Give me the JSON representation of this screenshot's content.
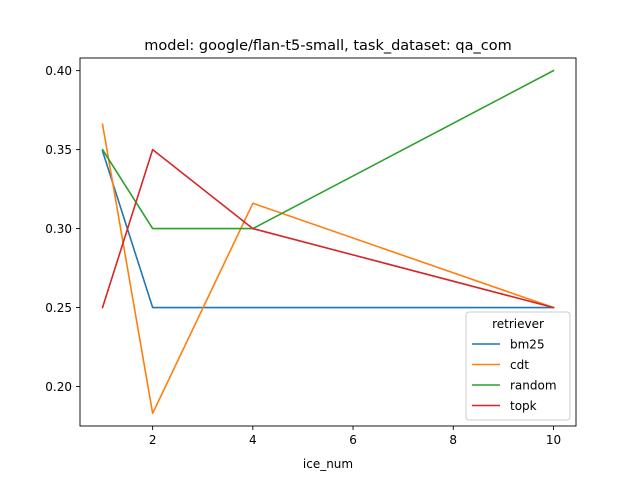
{
  "chart_data": {
    "type": "line",
    "title": "model: google/flan-t5-small, task_dataset: qa_com",
    "xlabel": "ice_num",
    "ylabel": "",
    "xlim": [
      0.55,
      10.45
    ],
    "ylim": [
      0.175,
      0.408
    ],
    "xticks": [
      2,
      4,
      6,
      8,
      10
    ],
    "yticks": [
      0.2,
      0.25,
      0.3,
      0.35,
      0.4
    ],
    "xtick_labels": [
      "2",
      "4",
      "6",
      "8",
      "10"
    ],
    "ytick_labels": [
      "0.20",
      "0.25",
      "0.30",
      "0.35",
      "0.40"
    ],
    "grid": false,
    "legend": {
      "title": "retriever",
      "placement": "lower-right"
    },
    "x": [
      1,
      2,
      4,
      10
    ],
    "series": [
      {
        "name": "bm25",
        "color": "#1f77b4",
        "values": [
          0.349,
          0.25,
          0.25,
          0.25
        ]
      },
      {
        "name": "cdt",
        "color": "#ff7f0e",
        "values": [
          0.366,
          0.183,
          0.316,
          0.25
        ]
      },
      {
        "name": "random",
        "color": "#2ca02c",
        "values": [
          0.35,
          0.3,
          0.3,
          0.4
        ]
      },
      {
        "name": "topk",
        "color": "#d62728",
        "values": [
          0.25,
          0.35,
          0.3,
          0.25
        ]
      }
    ]
  }
}
